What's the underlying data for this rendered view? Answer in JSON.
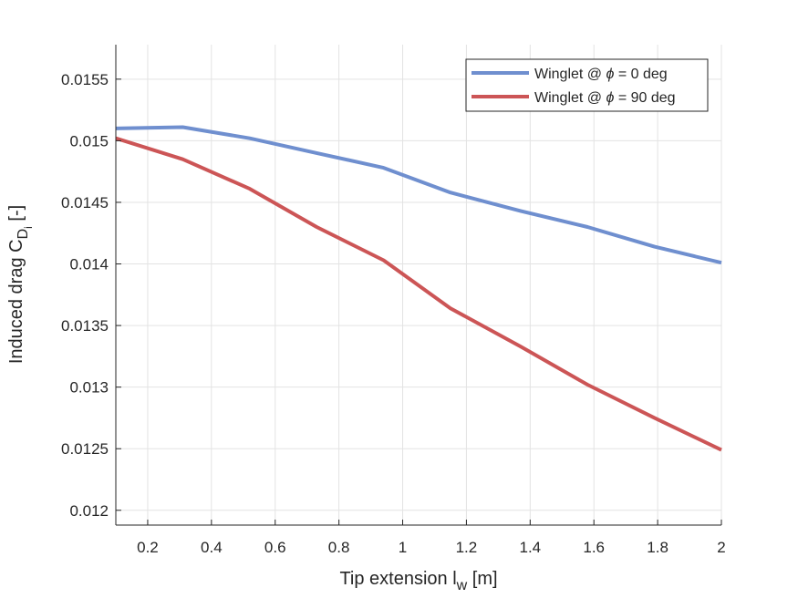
{
  "chart_data": {
    "type": "line",
    "x": [
      0.1,
      0.31,
      0.52,
      0.73,
      0.94,
      1.15,
      1.37,
      1.58,
      1.79,
      2.0
    ],
    "series": [
      {
        "name": "Winglet @ ϕ = 0 deg",
        "legend_parts": {
          "pre": "Winglet @ ",
          "symbol": "ϕ",
          "post": " = 0 deg"
        },
        "color": "#6f8fcf",
        "values": [
          0.0151,
          0.01511,
          0.01502,
          0.0149,
          0.01478,
          0.01458,
          0.01443,
          0.0143,
          0.01414,
          0.01401
        ]
      },
      {
        "name": "Winglet @ ϕ = 90 deg",
        "legend_parts": {
          "pre": "Winglet @ ",
          "symbol": "ϕ",
          "post": " = 90 deg"
        },
        "color": "#cc5556",
        "values": [
          0.01502,
          0.01485,
          0.01461,
          0.0143,
          0.01403,
          0.01364,
          0.01333,
          0.01302,
          0.01275,
          0.01249
        ]
      }
    ],
    "xlabel": {
      "main": "Tip extension l",
      "sub": "w",
      "post": " [m]"
    },
    "ylabel": {
      "main": "Induced drag C",
      "sub": "D",
      "subsub": "i",
      "post": " [-]"
    },
    "xlim": [
      0.1,
      2.0
    ],
    "ylim": [
      0.01188,
      0.01578
    ],
    "xticks": [
      0.2,
      0.4,
      0.6,
      0.8,
      1.0,
      1.2,
      1.4,
      1.6,
      1.8,
      2.0
    ],
    "xtick_labels": [
      "0.2",
      "0.4",
      "0.6",
      "0.8",
      "1",
      "1.2",
      "1.4",
      "1.6",
      "1.8",
      "2"
    ],
    "yticks": [
      0.012,
      0.0125,
      0.013,
      0.0135,
      0.014,
      0.0145,
      0.015,
      0.0155
    ],
    "ytick_labels": [
      "0.012",
      "0.0125",
      "0.013",
      "0.0135",
      "0.014",
      "0.0145",
      "0.015",
      "0.0155"
    ],
    "grid": true,
    "legend_position": "top-right"
  }
}
